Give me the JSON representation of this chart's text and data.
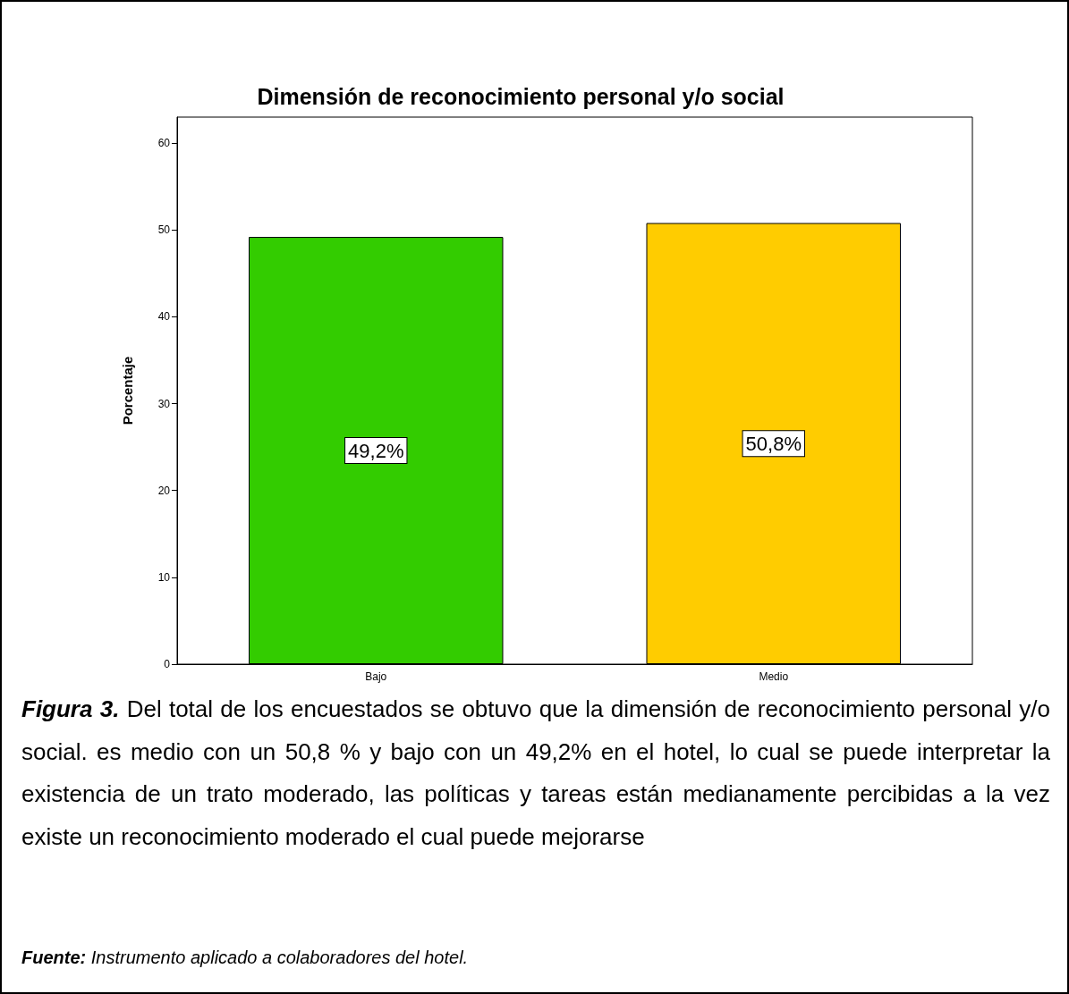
{
  "chart_data": {
    "type": "bar",
    "title": "Dimensión de reconocimiento personal y/o social",
    "ylabel": "Porcentaje",
    "categories": [
      "Bajo",
      "Medio"
    ],
    "values": [
      49.2,
      50.8
    ],
    "colors": [
      "#33cc00",
      "#ffcc00"
    ],
    "value_labels": [
      "49,2%",
      "50,8%"
    ],
    "ylim": [
      0,
      63
    ],
    "yticks": [
      0,
      10,
      20,
      30,
      40,
      50,
      60
    ],
    "grid": false,
    "annotations": [
      "Figura 3.",
      "Del total de los encuestados se obtuvo que la dimensión de reconocimiento personal y/o social. es medio con un 50,8 % y bajo con un 49,2% en el hotel, lo cual se puede interpretar la existencia de un trato moderado, las políticas y tareas están medianamente percibidas a la vez existe un reconocimiento moderado el cual puede mejorarse",
      "Fuente:",
      "Instrumento aplicado a colaboradores del hotel."
    ]
  }
}
